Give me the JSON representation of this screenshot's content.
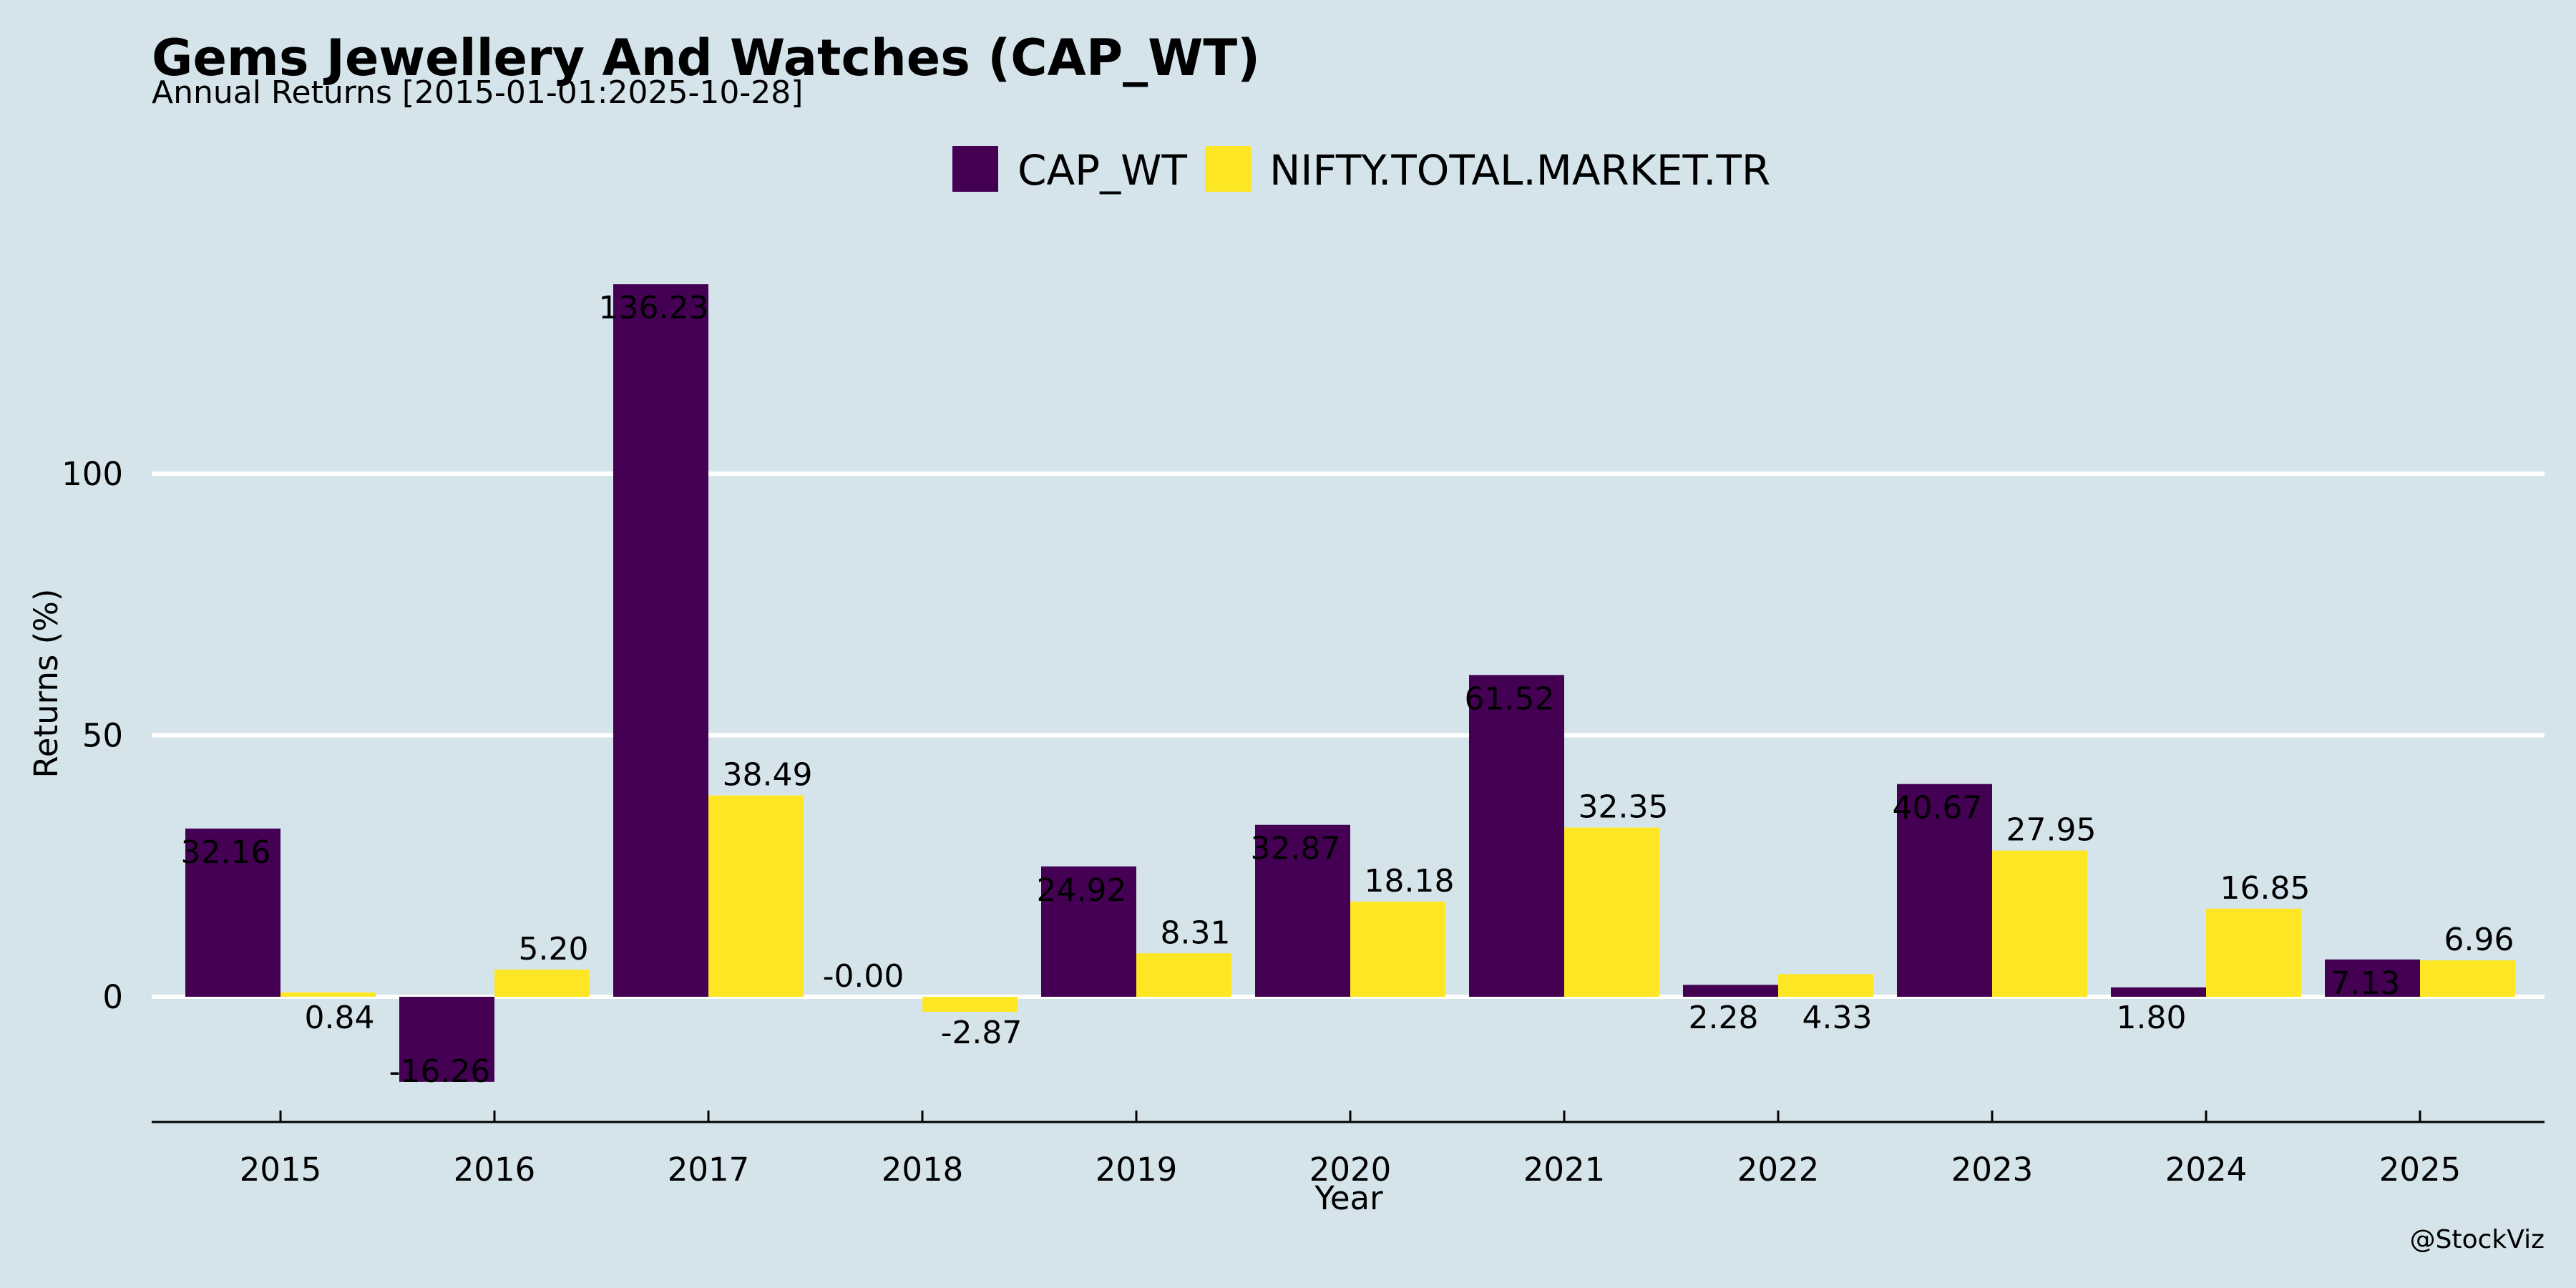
{
  "chart_data": {
    "type": "bar",
    "title": "Gems Jewellery And Watches (CAP_WT)",
    "subtitle": "Annual Returns [2015-01-01:2025-10-28]",
    "xlabel": "Year",
    "ylabel": "Returns (%)",
    "categories": [
      "2015",
      "2016",
      "2017",
      "2018",
      "2019",
      "2020",
      "2021",
      "2022",
      "2023",
      "2024",
      "2025"
    ],
    "series": [
      {
        "name": "CAP_WT",
        "color": "#440154",
        "values": [
          32.16,
          -16.26,
          136.23,
          null,
          24.92,
          32.87,
          61.52,
          2.28,
          40.67,
          1.8,
          7.13
        ],
        "labels": [
          "32.16",
          "-16.26",
          "136.23",
          null,
          "24.92",
          "32.87",
          "61.52",
          "2.28",
          "40.67",
          "1.80",
          "7.13"
        ]
      },
      {
        "name": "NIFTY.TOTAL.MARKET.TR",
        "color": "#fde725",
        "values": [
          0.84,
          5.2,
          38.49,
          -2.87,
          8.31,
          18.18,
          32.35,
          4.33,
          27.95,
          16.85,
          6.96
        ],
        "labels": [
          "0.84",
          "5.20",
          "38.49",
          "-2.87",
          "8.31",
          "18.18",
          "32.35",
          "4.33",
          "27.95",
          "16.85",
          "6.96"
        ]
      }
    ],
    "extra_labels": [
      {
        "text": "-0.00",
        "category": "2017",
        "value": 0
      }
    ],
    "yticks": [
      0,
      50,
      100
    ],
    "ytick_labels": [
      "0",
      "50",
      "100"
    ],
    "ylim": [
      -24,
      142
    ],
    "grid": "horizontal",
    "legend_position": "top-center",
    "background_color": "#d5e4eb",
    "grid_color": "#ffffff"
  },
  "credit": "@StockViz"
}
